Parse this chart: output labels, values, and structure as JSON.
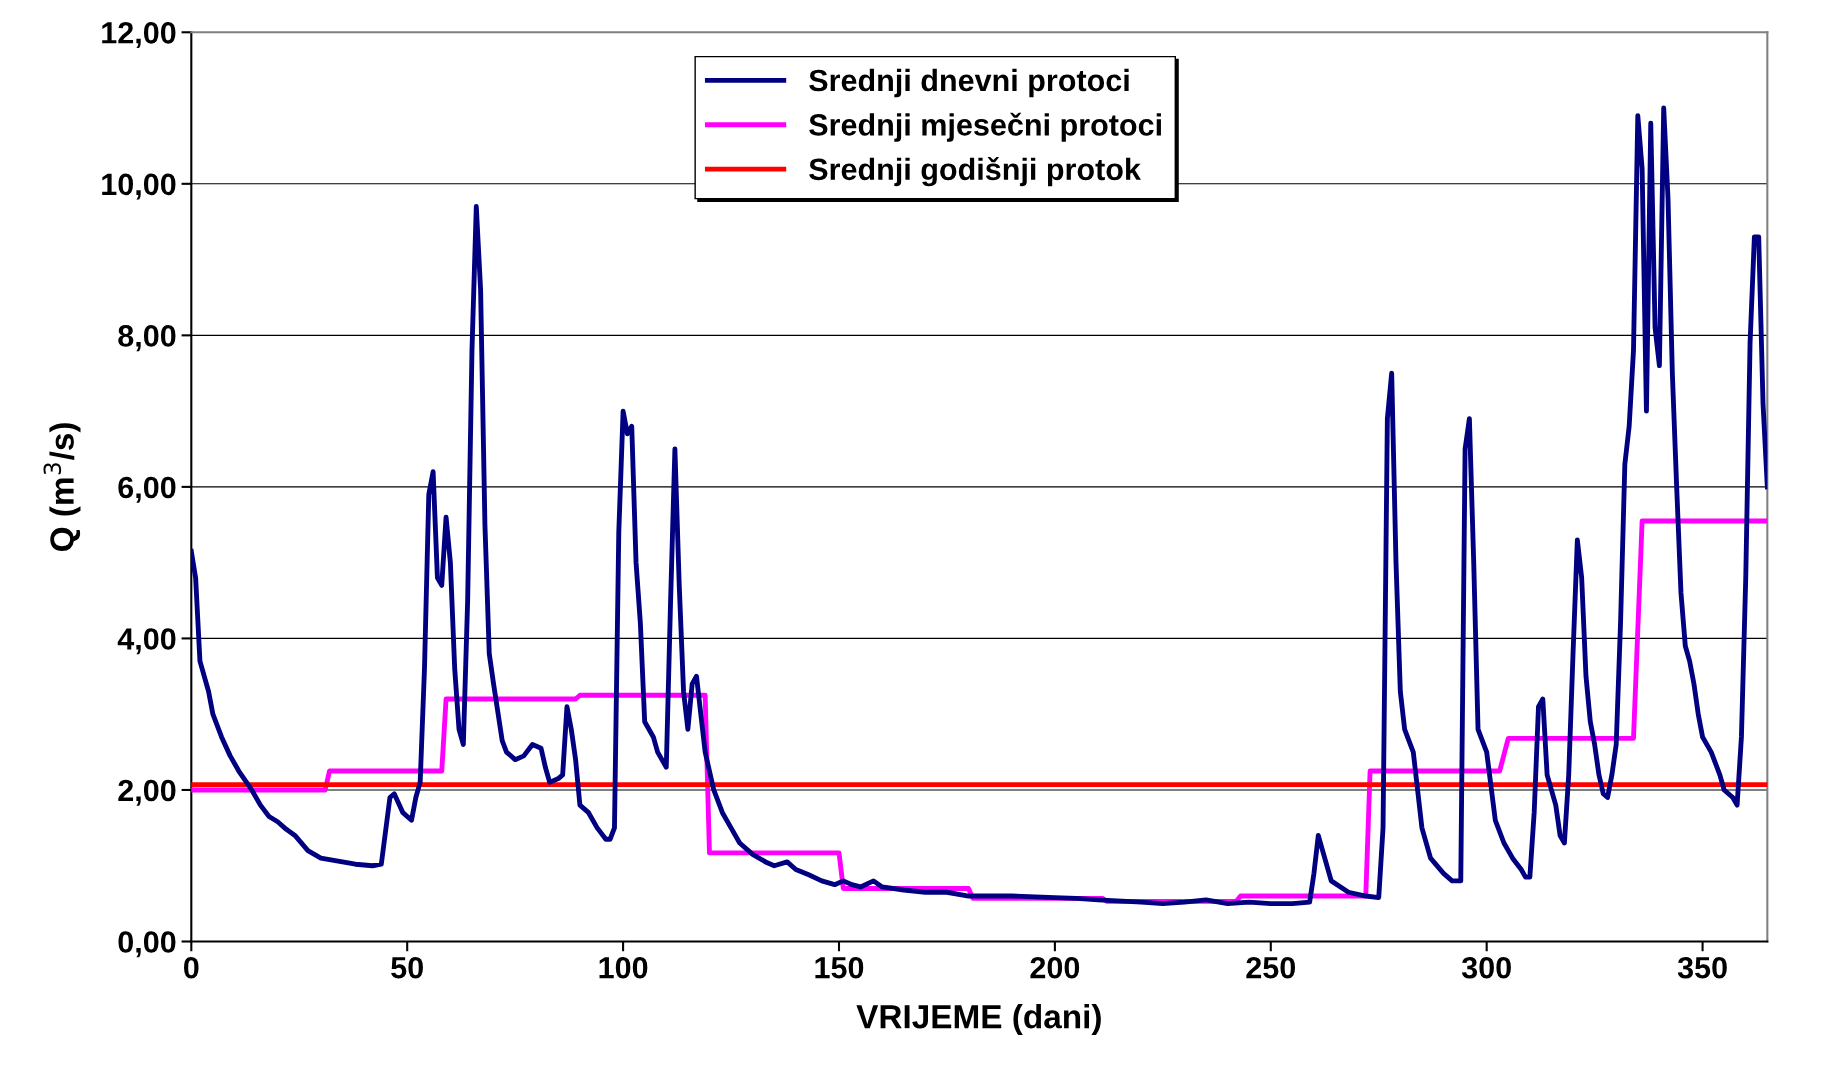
{
  "chart_data": {
    "type": "line",
    "xlabel": "VRIJEME (dani)",
    "ylabel": "Q (m$^{3}$/s)",
    "xlim": [
      0,
      365
    ],
    "xticks": [
      0,
      50,
      100,
      150,
      200,
      250,
      300,
      350
    ],
    "ylim": [
      0,
      12
    ],
    "yticks": [
      {
        "value": 0,
        "label": "0,00"
      },
      {
        "value": 2,
        "label": "2,00"
      },
      {
        "value": 4,
        "label": "4,00"
      },
      {
        "value": 6,
        "label": "6,00"
      },
      {
        "value": 8,
        "label": "8,00"
      },
      {
        "value": 10,
        "label": "10,00"
      },
      {
        "value": 12,
        "label": "12,00"
      }
    ],
    "grid": "y",
    "legend": "top",
    "marker": "none",
    "line_style": "solid",
    "series": [
      {
        "name": "Srednji dnevni protoci",
        "color": "#000080",
        "x": [
          0,
          1,
          2,
          4,
          5,
          7,
          9,
          11,
          14,
          16,
          18,
          20,
          22,
          24,
          27,
          30,
          32,
          35,
          38,
          42,
          44,
          46,
          47,
          49,
          51,
          52,
          53,
          54,
          55,
          56,
          57,
          58,
          59,
          60,
          61,
          62,
          63,
          64,
          65,
          66,
          67,
          68,
          69,
          70,
          72,
          73,
          75,
          77,
          79,
          81,
          82,
          83,
          85,
          86,
          87,
          88,
          89,
          90,
          92,
          94,
          96,
          97,
          98,
          99,
          100,
          101,
          102,
          103,
          104,
          105,
          107,
          108,
          110,
          111,
          112,
          113,
          114,
          115,
          116,
          117,
          118,
          119,
          121,
          123,
          125,
          127,
          130,
          133,
          135,
          138,
          140,
          143,
          146,
          149,
          151,
          153,
          155,
          158,
          160,
          165,
          170,
          175,
          180,
          190,
          200,
          205,
          210,
          220,
          225,
          230,
          235,
          240,
          245,
          250,
          255,
          259,
          260,
          261,
          262,
          264,
          268,
          272,
          275,
          276,
          277,
          278,
          279,
          280,
          281,
          283,
          285,
          287,
          290,
          292,
          294,
          295,
          296,
          297,
          298,
          300,
          302,
          304,
          306,
          308,
          309,
          310,
          311,
          312,
          313,
          314,
          316,
          317,
          318,
          319,
          320,
          321,
          322,
          323,
          324,
          325,
          326,
          327,
          328,
          329,
          330,
          331,
          332,
          333,
          334,
          335,
          336,
          337,
          338,
          339,
          340,
          341,
          342,
          343,
          344,
          345,
          346,
          347,
          348,
          349,
          350,
          352,
          354,
          355,
          357,
          358,
          359,
          360,
          361,
          362,
          363,
          364,
          365
        ],
        "values": [
          5.15,
          4.8,
          3.7,
          3.3,
          3.0,
          2.7,
          2.45,
          2.25,
          2.0,
          1.8,
          1.65,
          1.58,
          1.48,
          1.4,
          1.2,
          1.1,
          1.08,
          1.05,
          1.02,
          1.0,
          1.02,
          1.9,
          1.95,
          1.7,
          1.6,
          1.9,
          2.1,
          3.6,
          5.9,
          6.2,
          4.8,
          4.7,
          5.6,
          5.0,
          3.6,
          2.8,
          2.6,
          4.5,
          7.8,
          9.7,
          8.6,
          5.5,
          3.8,
          3.4,
          2.65,
          2.5,
          2.4,
          2.45,
          2.6,
          2.55,
          2.3,
          2.1,
          2.15,
          2.2,
          3.1,
          2.8,
          2.4,
          1.8,
          1.7,
          1.5,
          1.35,
          1.35,
          1.5,
          5.4,
          7.0,
          6.7,
          6.8,
          5.0,
          4.2,
          2.9,
          2.7,
          2.5,
          2.3,
          4.5,
          6.5,
          4.7,
          3.3,
          2.8,
          3.4,
          3.5,
          3.0,
          2.5,
          2.0,
          1.7,
          1.5,
          1.3,
          1.15,
          1.05,
          1.0,
          1.05,
          0.95,
          0.88,
          0.8,
          0.75,
          0.8,
          0.75,
          0.72,
          0.8,
          0.72,
          0.68,
          0.65,
          0.65,
          0.6,
          0.6,
          0.58,
          0.57,
          0.55,
          0.52,
          0.5,
          0.52,
          0.55,
          0.5,
          0.52,
          0.5,
          0.5,
          0.52,
          0.9,
          1.4,
          1.2,
          0.8,
          0.65,
          0.6,
          0.58,
          1.5,
          6.9,
          7.5,
          5.0,
          3.3,
          2.8,
          2.5,
          1.5,
          1.1,
          0.9,
          0.8,
          0.8,
          6.5,
          6.9,
          5.0,
          2.8,
          2.5,
          1.6,
          1.3,
          1.1,
          0.95,
          0.85,
          0.85,
          1.7,
          3.1,
          3.2,
          2.2,
          1.8,
          1.4,
          1.3,
          2.2,
          3.8,
          5.3,
          4.8,
          3.5,
          2.9,
          2.6,
          2.2,
          1.95,
          1.9,
          2.2,
          2.6,
          4.2,
          6.3,
          6.8,
          7.8,
          10.9,
          10.2,
          7.0,
          10.8,
          8.1,
          7.6,
          11.0,
          9.8,
          7.5,
          6.0,
          4.6,
          3.9,
          3.7,
          3.4,
          3.0,
          2.7,
          2.5,
          2.2,
          2.0,
          1.9,
          1.8,
          2.7,
          4.8,
          7.9,
          9.3,
          9.3,
          7.1,
          6.0
        ]
      },
      {
        "name": "Srednji mjesečni protoci",
        "color": "#ff00ff",
        "x": [
          0,
          31,
          32,
          58,
          59,
          89,
          90,
          119,
          120,
          150,
          151,
          180,
          181,
          211,
          212,
          242,
          243,
          272,
          273,
          303,
          305,
          334,
          336,
          365
        ],
        "values": [
          2.0,
          2.0,
          2.25,
          2.25,
          3.2,
          3.2,
          3.25,
          3.25,
          1.17,
          1.17,
          0.7,
          0.7,
          0.57,
          0.57,
          0.53,
          0.53,
          0.6,
          0.6,
          2.25,
          2.25,
          2.68,
          2.68,
          5.55,
          5.55
        ]
      },
      {
        "name": "Srednji godišnji protok",
        "color": "#ff0000",
        "x": [
          0,
          365
        ],
        "values": [
          2.07,
          2.07
        ]
      }
    ]
  }
}
